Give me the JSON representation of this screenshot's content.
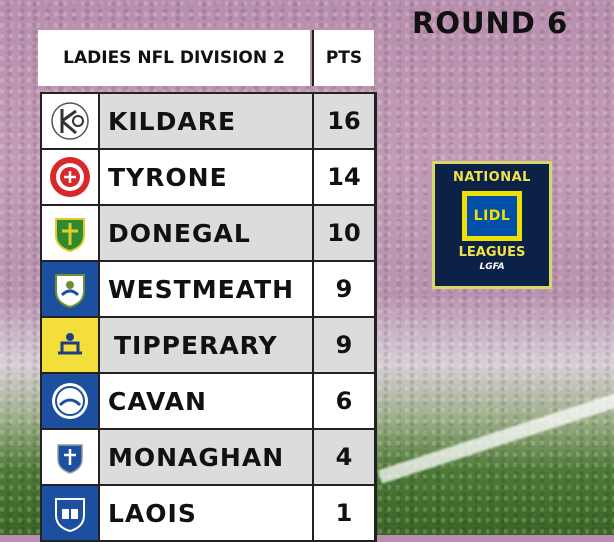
{
  "round_title": "ROUND 6",
  "header": {
    "division": "LADIES NFL DIVISION 2",
    "pts": "PTS"
  },
  "teams": [
    {
      "name": "KILDARE",
      "pts": "16",
      "crest": "kildare-crest-icon"
    },
    {
      "name": "TYRONE",
      "pts": "14",
      "crest": "tyrone-crest-icon"
    },
    {
      "name": "DONEGAL",
      "pts": "10",
      "crest": "donegal-crest-icon"
    },
    {
      "name": "WESTMEATH",
      "pts": "9",
      "crest": "westmeath-crest-icon"
    },
    {
      "name": "TIPPERARY",
      "pts": "9",
      "crest": "tipperary-crest-icon"
    },
    {
      "name": "CAVAN",
      "pts": "6",
      "crest": "cavan-crest-icon"
    },
    {
      "name": "MONAGHAN",
      "pts": "4",
      "crest": "monaghan-crest-icon"
    },
    {
      "name": "LAOIS",
      "pts": "1",
      "crest": "laois-crest-icon"
    }
  ],
  "logo": {
    "top": "NATIONAL",
    "brand": "LIDL",
    "bottom": "LEAGUES",
    "org": "LGFA"
  }
}
